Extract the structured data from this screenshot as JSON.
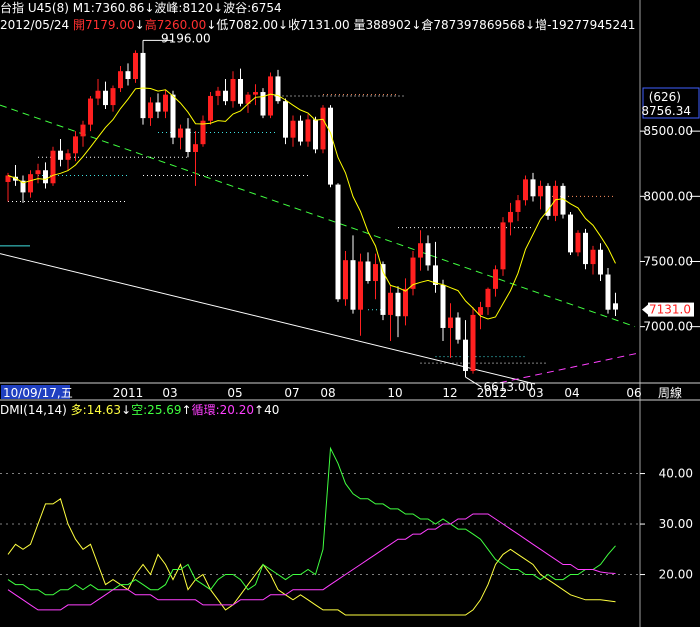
{
  "header1": [
    {
      "text": "台指",
      "color": "#ffffff"
    },
    {
      "text": " U45(8) ",
      "color": "#ffffff"
    },
    {
      "text": "M1:7360.86",
      "color": "#ffffff"
    },
    {
      "text": "↓",
      "color": "#ffffff"
    },
    {
      "text": "波峰:8120",
      "color": "#ffffff"
    },
    {
      "text": "↓",
      "color": "#ffffff"
    },
    {
      "text": "波谷:6754",
      "color": "#ffffff"
    }
  ],
  "header2": [
    {
      "text": "2012/05/24",
      "color": "#ffffff"
    },
    {
      "text": " 開7179.00",
      "color": "#ff3030"
    },
    {
      "text": "↓",
      "color": "#ffffff"
    },
    {
      "text": "高7260.00",
      "color": "#ff3030"
    },
    {
      "text": "↓",
      "color": "#ffffff"
    },
    {
      "text": "低7082.00",
      "color": "#ffffff"
    },
    {
      "text": "↓",
      "color": "#ffffff"
    },
    {
      "text": "收7131.00",
      "color": "#ffffff"
    },
    {
      "text": " 量388902",
      "color": "#ffffff"
    },
    {
      "text": "↓",
      "color": "#ffffff"
    },
    {
      "text": "倉787397869568",
      "color": "#ffffff"
    },
    {
      "text": "↓",
      "color": "#ffffff"
    },
    {
      "text": "增-19277945241",
      "color": "#ffffff"
    }
  ],
  "dmi_header": [
    {
      "text": "DMI(14,14)",
      "color": "#ffffff"
    },
    {
      "text": " 多:14.63",
      "color": "#ffff40"
    },
    {
      "text": "↓",
      "color": "#ffffff"
    },
    {
      "text": "空:25.69",
      "color": "#40ff40"
    },
    {
      "text": "↑",
      "color": "#ffffff"
    },
    {
      "text": "循環:20.20",
      "color": "#ff40ff"
    },
    {
      "text": "↑",
      "color": "#ffffff"
    },
    {
      "text": "40",
      "color": "#ffffff"
    }
  ],
  "x_axis": {
    "start_date": "10/09/17,五",
    "ticks": [
      "2011",
      "03",
      "05",
      "07",
      "08",
      "10",
      "12",
      "2012",
      "03",
      "04",
      "06"
    ],
    "corner_label": "周線"
  },
  "price_axis": {
    "ticks": [
      "8500.00",
      "8000.00",
      "7500.00",
      "7000.00"
    ],
    "ind_count": "(626)",
    "ind_value": "8756.34",
    "current_price": "7131.0"
  },
  "annotations": {
    "high": "9196.00",
    "low": "6613.00"
  },
  "dmi_axis": {
    "ticks": [
      "40.00",
      "30.00",
      "20.00"
    ]
  },
  "colors": {
    "up": "#ff2020",
    "down": "#ffffff",
    "ma": "#ffff00",
    "plus_di": "#ffff40",
    "minus_di": "#40ff40",
    "adx": "#ff40ff",
    "trend_green": "#40ff40",
    "trend_magenta": "#ff40ff"
  },
  "chart_data": [
    {
      "type": "candlestick",
      "title": "台指",
      "series_name": "台指 周線",
      "ylim": [
        6560,
        9230
      ],
      "ohlc": [
        [
          8110,
          8180,
          7960,
          8160
        ],
        [
          8150,
          8240,
          8080,
          8120
        ],
        [
          8120,
          8160,
          7950,
          8030
        ],
        [
          8030,
          8200,
          7990,
          8170
        ],
        [
          8170,
          8250,
          8100,
          8200
        ],
        [
          8200,
          8260,
          8060,
          8100
        ],
        [
          8100,
          8380,
          8080,
          8350
        ],
        [
          8350,
          8440,
          8230,
          8280
        ],
        [
          8280,
          8360,
          8200,
          8330
        ],
        [
          8330,
          8500,
          8270,
          8460
        ],
        [
          8460,
          8580,
          8380,
          8550
        ],
        [
          8550,
          8770,
          8500,
          8750
        ],
        [
          8750,
          8900,
          8700,
          8810
        ],
        [
          8810,
          8880,
          8670,
          8700
        ],
        [
          8700,
          8850,
          8650,
          8830
        ],
        [
          8830,
          9000,
          8800,
          8960
        ],
        [
          8960,
          9020,
          8850,
          8900
        ],
        [
          8900,
          9120,
          8870,
          9100
        ],
        [
          9100,
          9196,
          8550,
          8600
        ],
        [
          8600,
          8760,
          8540,
          8720
        ],
        [
          8720,
          8790,
          8600,
          8650
        ],
        [
          8650,
          8820,
          8600,
          8780
        ],
        [
          8780,
          8810,
          8400,
          8450
        ],
        [
          8450,
          8550,
          8360,
          8520
        ],
        [
          8520,
          8600,
          8300,
          8340
        ],
        [
          8340,
          8500,
          8080,
          8400
        ],
        [
          8400,
          8620,
          8380,
          8580
        ],
        [
          8580,
          8800,
          8550,
          8770
        ],
        [
          8770,
          8840,
          8700,
          8810
        ],
        [
          8810,
          8900,
          8700,
          8730
        ],
        [
          8730,
          8960,
          8680,
          8900
        ],
        [
          8900,
          8980,
          8690,
          8710
        ],
        [
          8710,
          8800,
          8640,
          8780
        ],
        [
          8780,
          8860,
          8700,
          8800
        ],
        [
          8800,
          8830,
          8600,
          8620
        ],
        [
          8620,
          8950,
          8600,
          8920
        ],
        [
          8920,
          8970,
          8710,
          8730
        ],
        [
          8730,
          8750,
          8400,
          8450
        ],
        [
          8450,
          8620,
          8380,
          8580
        ],
        [
          8580,
          8620,
          8390,
          8420
        ],
        [
          8420,
          8630,
          8380,
          8590
        ],
        [
          8590,
          8610,
          8330,
          8360
        ],
        [
          8360,
          8700,
          8330,
          8680
        ],
        [
          8680,
          8700,
          8070,
          8090
        ],
        [
          8090,
          8100,
          7190,
          7210
        ],
        [
          7210,
          7580,
          7160,
          7510
        ],
        [
          7510,
          7700,
          7100,
          7130
        ],
        [
          7130,
          7560,
          6930,
          7500
        ],
        [
          7500,
          7570,
          7330,
          7350
        ],
        [
          7350,
          7560,
          7210,
          7480
        ],
        [
          7480,
          7500,
          7050,
          7090
        ],
        [
          7090,
          7310,
          6890,
          7260
        ],
        [
          7260,
          7310,
          6920,
          7080
        ],
        [
          7080,
          7370,
          7010,
          7290
        ],
        [
          7290,
          7580,
          7240,
          7530
        ],
        [
          7530,
          7740,
          7430,
          7640
        ],
        [
          7640,
          7700,
          7430,
          7470
        ],
        [
          7470,
          7650,
          7260,
          7320
        ],
        [
          7320,
          7360,
          6890,
          6990
        ],
        [
          6990,
          7180,
          6760,
          7070
        ],
        [
          7070,
          7110,
          6870,
          6900
        ],
        [
          6900,
          7050,
          6613,
          6660
        ],
        [
          6660,
          7150,
          6640,
          7090
        ],
        [
          7090,
          7190,
          6980,
          7150
        ],
        [
          7150,
          7300,
          7090,
          7290
        ],
        [
          7290,
          7470,
          7230,
          7440
        ],
        [
          7440,
          7840,
          7390,
          7800
        ],
        [
          7800,
          7950,
          7700,
          7880
        ],
        [
          7880,
          8010,
          7810,
          7970
        ],
        [
          7970,
          8160,
          7930,
          8130
        ],
        [
          8130,
          8180,
          7960,
          8000
        ],
        [
          8000,
          8120,
          7900,
          8080
        ],
        [
          8080,
          8100,
          7820,
          7850
        ],
        [
          7850,
          8120,
          7810,
          8080
        ],
        [
          8080,
          8100,
          7830,
          7860
        ],
        [
          7860,
          7880,
          7550,
          7570
        ],
        [
          7570,
          7740,
          7540,
          7720
        ],
        [
          7720,
          7750,
          7440,
          7480
        ],
        [
          7480,
          7620,
          7400,
          7590
        ],
        [
          7590,
          7640,
          7350,
          7400
        ],
        [
          7400,
          7450,
          7100,
          7130
        ],
        [
          7179,
          7260,
          7082,
          7131
        ]
      ],
      "ma_period": 8
    },
    {
      "type": "line",
      "title": "DMI(14,14)",
      "ylim": [
        11,
        51
      ],
      "series": [
        {
          "name": "多",
          "values": [
            24,
            26,
            25,
            26,
            30,
            34,
            34,
            35,
            30,
            27,
            25,
            26,
            22,
            18,
            19,
            18,
            17,
            20,
            22,
            20,
            24,
            22,
            19,
            22,
            17,
            19,
            20,
            17,
            15,
            13,
            14,
            16,
            18,
            20,
            22,
            20,
            17,
            16,
            15,
            16,
            15,
            14,
            13,
            13,
            13,
            12,
            12,
            12,
            12,
            12,
            12,
            12,
            12,
            12,
            12,
            12,
            12,
            12,
            12,
            12,
            12,
            12,
            13,
            15,
            18,
            22,
            24,
            25,
            24,
            23,
            22,
            20,
            19,
            18,
            17,
            16,
            15.5,
            15,
            15,
            15,
            14.8,
            14.63
          ]
        },
        {
          "name": "空",
          "values": [
            19,
            18,
            18,
            17,
            17,
            16,
            16,
            17,
            17,
            18,
            17,
            18,
            17,
            17,
            17,
            18,
            18,
            19,
            18,
            17,
            17,
            18,
            21,
            21,
            22,
            19,
            18,
            17,
            19,
            20,
            20,
            19,
            17,
            18,
            22,
            21,
            20,
            19,
            20,
            20,
            21,
            20,
            25,
            45,
            42,
            38,
            36,
            35,
            35,
            34,
            34,
            33,
            33,
            32,
            32,
            31,
            31,
            30,
            31,
            30,
            29,
            29,
            28,
            27,
            25,
            23,
            22,
            21,
            21,
            20,
            20,
            19,
            20,
            19,
            19,
            20,
            20,
            21,
            21,
            22,
            24,
            25.69
          ]
        },
        {
          "name": "循環",
          "values": [
            17,
            16,
            15,
            14,
            13,
            13,
            13,
            13,
            14,
            14,
            14,
            14,
            15,
            16,
            17,
            17,
            17,
            16,
            16,
            16,
            15,
            15,
            15,
            15,
            15,
            15,
            14,
            14,
            14,
            14,
            14,
            15,
            15,
            15,
            15,
            16,
            16,
            16,
            17,
            17,
            17,
            17,
            17,
            18,
            19,
            20,
            21,
            22,
            23,
            24,
            25,
            26,
            27,
            27,
            28,
            28,
            29,
            29,
            30,
            30,
            31,
            31,
            32,
            32,
            32,
            31,
            30,
            29,
            28,
            27,
            26,
            25,
            24,
            23,
            22,
            22,
            21,
            21,
            21,
            20.5,
            20.3,
            20.2
          ]
        }
      ]
    }
  ]
}
